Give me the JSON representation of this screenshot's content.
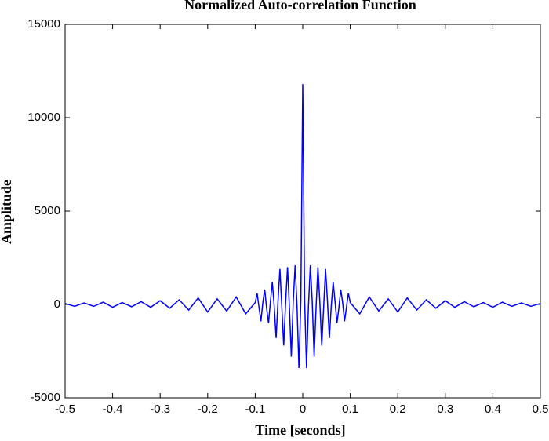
{
  "chart_data": {
    "type": "line",
    "title": "Normalized Auto-correlation Function",
    "xlabel": "Time [seconds]",
    "ylabel": "Amplitude",
    "color": "#0000ff",
    "x": [
      -0.5,
      -0.48,
      -0.46,
      -0.44,
      -0.42,
      -0.4,
      -0.38,
      -0.36,
      -0.34,
      -0.32,
      -0.3,
      -0.28,
      -0.26,
      -0.24,
      -0.22,
      -0.2,
      -0.18,
      -0.16,
      -0.14,
      -0.12,
      -0.1,
      -0.096,
      -0.092,
      -0.088,
      -0.084,
      -0.08,
      -0.076,
      -0.072,
      -0.068,
      -0.064,
      -0.06,
      -0.056,
      -0.052,
      -0.048,
      -0.044,
      -0.04,
      -0.036,
      -0.032,
      -0.028,
      -0.024,
      -0.02,
      -0.016,
      -0.012,
      -0.008,
      -0.004,
      0,
      0.004,
      0.008,
      0.012,
      0.016,
      0.02,
      0.024,
      0.028,
      0.032,
      0.036,
      0.04,
      0.044,
      0.048,
      0.052,
      0.056,
      0.06,
      0.064,
      0.068,
      0.072,
      0.076,
      0.08,
      0.084,
      0.088,
      0.092,
      0.096,
      0.1,
      0.12,
      0.14,
      0.16,
      0.18,
      0.2,
      0.22,
      0.24,
      0.26,
      0.28,
      0.3,
      0.32,
      0.34,
      0.36,
      0.38,
      0.4,
      0.42,
      0.44,
      0.46,
      0.48,
      0.5
    ],
    "values": [
      50,
      -100,
      80,
      -100,
      120,
      -150,
      100,
      -120,
      150,
      -150,
      200,
      -200,
      250,
      -300,
      350,
      -400,
      300,
      -350,
      400,
      -500,
      100,
      600,
      -150,
      -900,
      100,
      800,
      -200,
      -1000,
      150,
      1200,
      -100,
      -1800,
      200,
      1900,
      -150,
      -2200,
      100,
      2000,
      -200,
      -2800,
      150,
      2100,
      -100,
      -3400,
      200,
      11800,
      200,
      -3400,
      -100,
      2100,
      150,
      -2800,
      -200,
      2000,
      100,
      -2200,
      -150,
      1900,
      200,
      -1800,
      -100,
      1200,
      150,
      -1000,
      -200,
      800,
      100,
      -900,
      -150,
      600,
      100,
      -500,
      400,
      -350,
      300,
      -400,
      350,
      -300,
      250,
      -200,
      200,
      -150,
      150,
      -120,
      100,
      -150,
      120,
      -100,
      80,
      -100,
      50
    ],
    "xlim": [
      -0.5,
      0.5
    ],
    "ylim": [
      -5000,
      15000
    ],
    "xticks": [
      -0.5,
      -0.4,
      -0.3,
      -0.2,
      -0.1,
      0,
      0.1,
      0.2,
      0.3,
      0.4,
      0.5
    ],
    "yticks": [
      -5000,
      0,
      5000,
      10000,
      15000
    ]
  }
}
